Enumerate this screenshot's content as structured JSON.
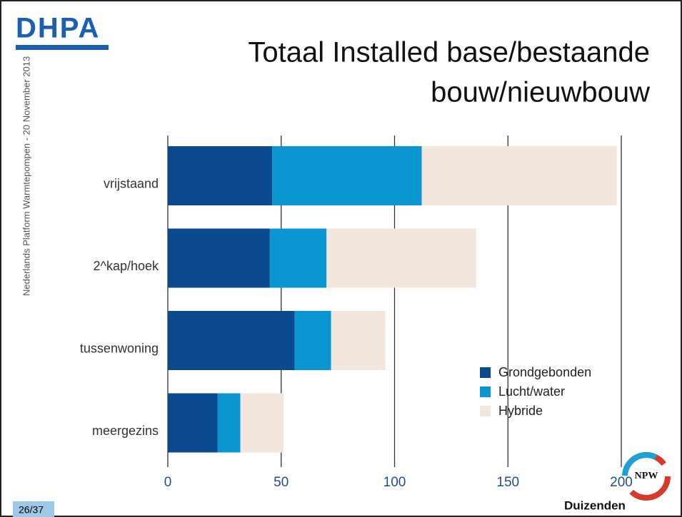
{
  "logo": "DHPA",
  "side_text": "Nederlands Platform Warmtepompen - 20 November 2013",
  "slide_number": "26/37",
  "footer_logo": {
    "badge": "NPW",
    "name": "Duizenden"
  },
  "chart_data": {
    "type": "stacked-barh",
    "title_lines": [
      "Totaal Installed base/bestaande",
      "bouw/nieuwbouw"
    ],
    "categories": [
      "vrijstaand",
      "2^kap/hoek",
      "tussenwoning",
      "meergezins"
    ],
    "series": [
      {
        "name": "Grondgebonden",
        "color": "#0b4a8e",
        "values": [
          46,
          45,
          56,
          22
        ]
      },
      {
        "name": "Lucht/water",
        "color": "#0a97d1",
        "values": [
          66,
          25,
          16,
          10
        ]
      },
      {
        "name": "Hybride",
        "color": "#f3e7dd",
        "values": [
          86,
          66,
          24,
          19
        ]
      }
    ],
    "xlim": [
      0,
      200
    ],
    "xticks": [
      0,
      50,
      100,
      150,
      200
    ],
    "grid": true,
    "legend": "lower right"
  }
}
